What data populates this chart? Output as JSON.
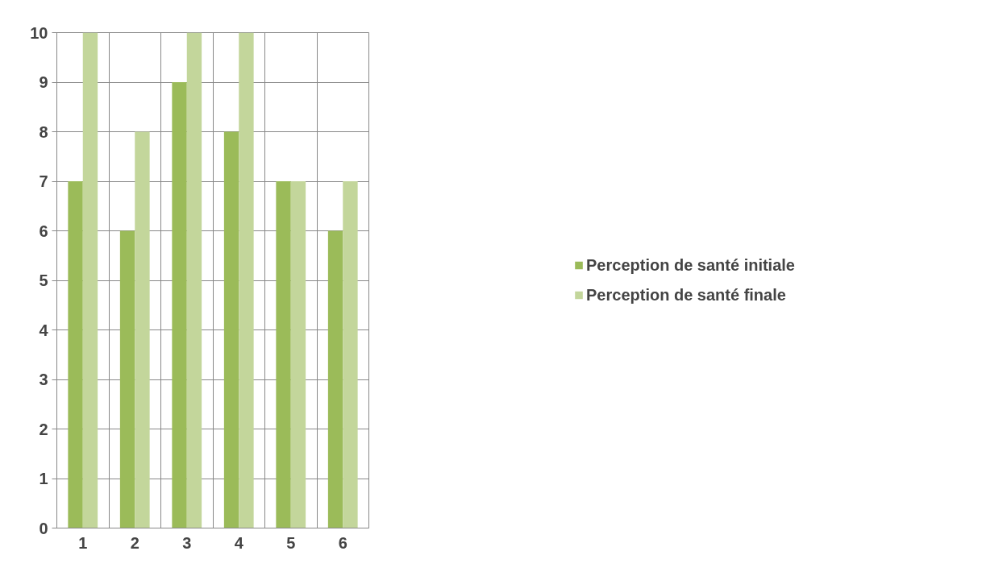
{
  "chart_data": {
    "type": "bar",
    "categories": [
      "1",
      "2",
      "3",
      "4",
      "5",
      "6"
    ],
    "series": [
      {
        "name": "Perception de santé initiale",
        "color": "#9bbb59",
        "values": [
          7,
          6,
          9,
          8,
          7,
          6
        ]
      },
      {
        "name": "Perception de santé finale",
        "color": "#c3d69b",
        "values": [
          10,
          8,
          10,
          10,
          7,
          7
        ]
      }
    ],
    "ylim": [
      0,
      10
    ],
    "yticks": [
      0,
      1,
      2,
      3,
      4,
      5,
      6,
      7,
      8,
      9,
      10
    ],
    "grid": true,
    "legend": "right"
  }
}
